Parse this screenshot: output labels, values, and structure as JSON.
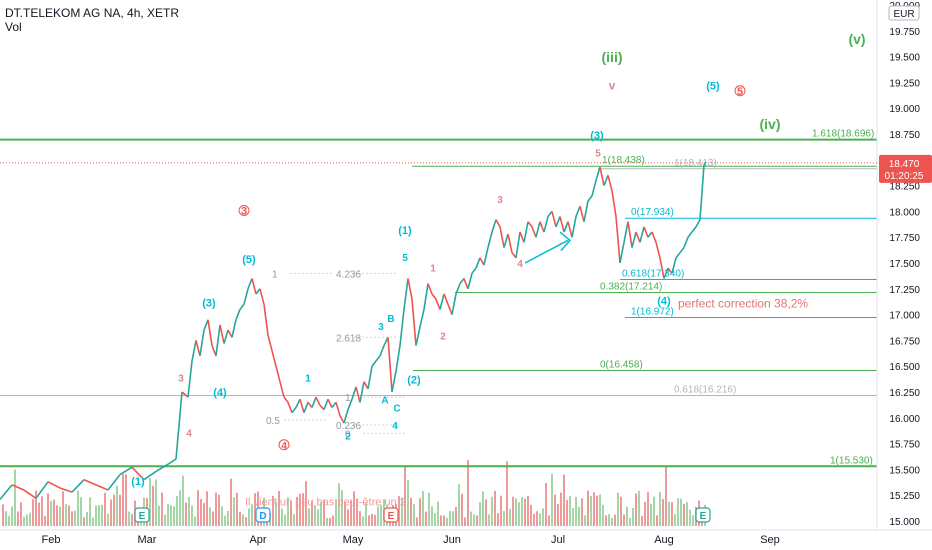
{
  "header": {
    "symbol_line": "DT.TELEKOM AG NA, 4h, XETR",
    "vol_label": "Vol"
  },
  "chart_data": {
    "type": "line",
    "currency": "EUR",
    "price_axis_ticks": [
      "20.000",
      "19.750",
      "19.500",
      "19.250",
      "19.000",
      "18.750",
      "18.500",
      "18.250",
      "18.000",
      "17.750",
      "17.500",
      "17.250",
      "17.000",
      "16.750",
      "16.500",
      "16.250",
      "16.000",
      "15.750",
      "15.500",
      "15.250",
      "15.000"
    ],
    "time_axis_ticks": [
      "Feb",
      "Mar",
      "Apr",
      "May",
      "Jun",
      "Jul",
      "Aug",
      "Sep"
    ],
    "last_price": "18.470",
    "countdown": "01:20:25",
    "series": [
      {
        "values": [
          [
            0,
            15.21
          ],
          [
            12,
            15.35
          ],
          [
            24,
            15.3
          ],
          [
            36,
            15.22
          ],
          [
            48,
            15.38
          ],
          [
            60,
            15.32
          ],
          [
            72,
            15.28
          ],
          [
            84,
            15.4
          ],
          [
            96,
            15.35
          ],
          [
            108,
            15.3
          ],
          [
            120,
            15.45
          ],
          [
            132,
            15.52
          ],
          [
            144,
            15.4
          ],
          [
            156,
            15.48
          ],
          [
            168,
            15.55
          ],
          [
            176,
            15.6
          ],
          [
            182,
            16.25
          ],
          [
            188,
            16.2
          ],
          [
            192,
            16.55
          ],
          [
            196,
            16.75
          ],
          [
            200,
            16.6
          ],
          [
            204,
            16.85
          ],
          [
            208,
            16.95
          ],
          [
            212,
            16.7
          ],
          [
            216,
            16.6
          ],
          [
            220,
            16.9
          ],
          [
            224,
            16.72
          ],
          [
            228,
            16.85
          ],
          [
            232,
            16.78
          ],
          [
            236,
            16.95
          ],
          [
            240,
            17.05
          ],
          [
            244,
            17.1
          ],
          [
            248,
            17.25
          ],
          [
            252,
            17.35
          ],
          [
            256,
            17.2
          ],
          [
            260,
            17.25
          ],
          [
            264,
            17.1
          ],
          [
            268,
            16.8
          ],
          [
            272,
            16.65
          ],
          [
            276,
            16.5
          ],
          [
            280,
            16.35
          ],
          [
            284,
            16.2
          ],
          [
            288,
            16.15
          ],
          [
            292,
            16.05
          ],
          [
            296,
            16.1
          ],
          [
            300,
            16.18
          ],
          [
            304,
            16.05
          ],
          [
            308,
            16.15
          ],
          [
            312,
            16.1
          ],
          [
            316,
            16.2
          ],
          [
            320,
            16.12
          ],
          [
            324,
            16.08
          ],
          [
            328,
            16.18
          ],
          [
            332,
            16.1
          ],
          [
            336,
            16.15
          ],
          [
            340,
            16.02
          ],
          [
            344,
            15.95
          ],
          [
            348,
            16.08
          ],
          [
            352,
            16.18
          ],
          [
            356,
            16.3
          ],
          [
            360,
            16.15
          ],
          [
            364,
            16.35
          ],
          [
            368,
            16.28
          ],
          [
            372,
            16.5
          ],
          [
            376,
            16.55
          ],
          [
            380,
            16.6
          ],
          [
            384,
            16.7
          ],
          [
            388,
            16.78
          ],
          [
            392,
            16.25
          ],
          [
            396,
            16.45
          ],
          [
            400,
            16.7
          ],
          [
            404,
            17.05
          ],
          [
            408,
            17.35
          ],
          [
            412,
            17.15
          ],
          [
            416,
            16.7
          ],
          [
            420,
            16.88
          ],
          [
            424,
            17.05
          ],
          [
            428,
            17.3
          ],
          [
            432,
            17.2
          ],
          [
            436,
            17.15
          ],
          [
            440,
            17.05
          ],
          [
            444,
            17.2
          ],
          [
            448,
            17.1
          ],
          [
            452,
            17.0
          ],
          [
            456,
            17.2
          ],
          [
            460,
            17.3
          ],
          [
            464,
            17.35
          ],
          [
            468,
            17.25
          ],
          [
            472,
            17.4
          ],
          [
            476,
            17.45
          ],
          [
            480,
            17.55
          ],
          [
            484,
            17.48
          ],
          [
            488,
            17.65
          ],
          [
            492,
            17.8
          ],
          [
            496,
            17.92
          ],
          [
            500,
            17.85
          ],
          [
            504,
            17.65
          ],
          [
            508,
            17.78
          ],
          [
            512,
            17.6
          ],
          [
            516,
            17.55
          ],
          [
            520,
            17.8
          ],
          [
            524,
            17.7
          ],
          [
            528,
            17.9
          ],
          [
            532,
            17.85
          ],
          [
            536,
            17.75
          ],
          [
            540,
            17.9
          ],
          [
            544,
            17.8
          ],
          [
            548,
            17.95
          ],
          [
            552,
            18.0
          ],
          [
            556,
            17.85
          ],
          [
            560,
            17.95
          ],
          [
            564,
            17.8
          ],
          [
            568,
            17.9
          ],
          [
            572,
            17.75
          ],
          [
            576,
            17.95
          ],
          [
            580,
            18.05
          ],
          [
            584,
            17.9
          ],
          [
            588,
            18.1
          ],
          [
            592,
            18.15
          ],
          [
            596,
            18.3
          ],
          [
            600,
            18.43
          ],
          [
            604,
            18.25
          ],
          [
            608,
            18.35
          ],
          [
            612,
            18.2
          ],
          [
            616,
            17.95
          ],
          [
            620,
            17.5
          ],
          [
            624,
            17.7
          ],
          [
            628,
            17.9
          ],
          [
            632,
            17.65
          ],
          [
            636,
            17.8
          ],
          [
            640,
            17.7
          ],
          [
            644,
            17.85
          ],
          [
            648,
            17.75
          ],
          [
            652,
            17.8
          ],
          [
            656,
            17.7
          ],
          [
            660,
            17.55
          ],
          [
            664,
            17.35
          ],
          [
            668,
            17.45
          ],
          [
            672,
            17.4
          ],
          [
            676,
            17.55
          ],
          [
            680,
            17.6
          ],
          [
            684,
            17.65
          ],
          [
            688,
            17.75
          ],
          [
            692,
            17.8
          ],
          [
            696,
            17.85
          ],
          [
            700,
            17.92
          ],
          [
            704,
            18.45
          ],
          [
            706,
            18.48
          ]
        ]
      }
    ],
    "levels": [
      {
        "value": 18.696,
        "label": "1.618(18.696)",
        "color": "#4caf50",
        "thick": true
      },
      {
        "value": 18.438,
        "label": "1(18.438)",
        "color": "#4caf50",
        "thick": false
      },
      {
        "value": 18.413,
        "label": "1(18.413)",
        "color": "#b2b5be",
        "thick": false
      },
      {
        "value": 17.934,
        "label": "0(17.934)",
        "color": "#00bcd4",
        "thick": false
      },
      {
        "value": 17.34,
        "label": "0.618(17.340)",
        "color": "#00bcd4",
        "thick": false
      },
      {
        "value": 17.214,
        "label": "0.382(17.214)",
        "color": "#4caf50",
        "thick": false
      },
      {
        "value": 16.972,
        "label": "1(16.972)",
        "color": "#00bcd4",
        "thick": false
      },
      {
        "value": 16.458,
        "label": "0(16.458)",
        "color": "#4caf50",
        "thick": false
      },
      {
        "value": 16.216,
        "label": "0.618(16.216)",
        "color": "#b2b5be",
        "thick": false
      },
      {
        "value": 15.53,
        "label": "1(15.530)",
        "color": "#4caf50",
        "thick": true
      }
    ],
    "gray_fib_labels": [
      {
        "label": "1",
        "x": 272,
        "y": 17.4
      },
      {
        "label": "4.236",
        "x": 336,
        "y": 17.4
      },
      {
        "label": "2.618",
        "x": 336,
        "y": 16.78
      },
      {
        "label": "1",
        "x": 345,
        "y": 16.2
      },
      {
        "label": "0.5",
        "x": 266,
        "y": 15.98
      },
      {
        "label": "0.236",
        "x": 336,
        "y": 15.93
      },
      {
        "label": "0",
        "x": 345,
        "y": 15.85
      }
    ],
    "wave_labels": [
      {
        "text": "(iii)",
        "color": "#4caf50",
        "x": 612,
        "y": 19.45,
        "size": 14
      },
      {
        "text": "(v)",
        "color": "#4caf50",
        "x": 857,
        "y": 19.62,
        "size": 14
      },
      {
        "text": "(iv)",
        "color": "#4caf50",
        "x": 770,
        "y": 18.8,
        "size": 14
      },
      {
        "text": "v",
        "color": "#e0868b",
        "x": 612,
        "y": 19.18,
        "size": 12
      },
      {
        "text": "(5)",
        "color": "#00bcd4",
        "x": 713,
        "y": 19.18,
        "size": 11
      },
      {
        "text": "5",
        "color": "#ef5350",
        "x": 740,
        "y": 19.13,
        "size": 11,
        "circle": true
      },
      {
        "text": "(3)",
        "color": "#00bcd4",
        "x": 597,
        "y": 18.7,
        "size": 11
      },
      {
        "text": "5",
        "color": "#e0868b",
        "x": 598,
        "y": 18.53,
        "size": 10
      },
      {
        "text": "3",
        "color": "#e0868b",
        "x": 500,
        "y": 18.08,
        "size": 10
      },
      {
        "text": "4",
        "color": "#e0868b",
        "x": 520,
        "y": 17.46,
        "size": 10
      },
      {
        "text": "1",
        "color": "#e0868b",
        "x": 433,
        "y": 17.42,
        "size": 10
      },
      {
        "text": "2",
        "color": "#e0868b",
        "x": 443,
        "y": 16.76,
        "size": 10
      },
      {
        "text": "3",
        "color": "#ef5350",
        "x": 244,
        "y": 17.97,
        "size": 11,
        "circle": true
      },
      {
        "text": "(1)",
        "color": "#00bcd4",
        "x": 405,
        "y": 17.78,
        "size": 11
      },
      {
        "text": "5",
        "color": "#00bcd4",
        "x": 405,
        "y": 17.52,
        "size": 10
      },
      {
        "text": "(5)",
        "color": "#00bcd4",
        "x": 249,
        "y": 17.5,
        "size": 11
      },
      {
        "text": "(3)",
        "color": "#00bcd4",
        "x": 209,
        "y": 17.08,
        "size": 11
      },
      {
        "text": "3",
        "color": "#e0868b",
        "x": 181,
        "y": 16.35,
        "size": 10
      },
      {
        "text": "4",
        "color": "#e0868b",
        "x": 189,
        "y": 15.82,
        "size": 10
      },
      {
        "text": "(4)",
        "color": "#00bcd4",
        "x": 220,
        "y": 16.21,
        "size": 11
      },
      {
        "text": "1",
        "color": "#00bcd4",
        "x": 308,
        "y": 16.35,
        "size": 10
      },
      {
        "text": "3",
        "color": "#00bcd4",
        "x": 381,
        "y": 16.85,
        "size": 10
      },
      {
        "text": "B",
        "color": "#00bcd4",
        "x": 391,
        "y": 16.93,
        "size": 10
      },
      {
        "text": "(2)",
        "color": "#00bcd4",
        "x": 414,
        "y": 16.33,
        "size": 11
      },
      {
        "text": "A",
        "color": "#00bcd4",
        "x": 385,
        "y": 16.14,
        "size": 10
      },
      {
        "text": "C",
        "color": "#00bcd4",
        "x": 397,
        "y": 16.06,
        "size": 10
      },
      {
        "text": "2",
        "color": "#00bcd4",
        "x": 348,
        "y": 15.79,
        "size": 10
      },
      {
        "text": "4",
        "color": "#00bcd4",
        "x": 395,
        "y": 15.89,
        "size": 10
      },
      {
        "text": "4",
        "color": "#ef5350",
        "x": 284,
        "y": 15.7,
        "size": 10,
        "circle": true
      },
      {
        "text": "(1)",
        "color": "#00bcd4",
        "x": 138,
        "y": 15.35,
        "size": 11
      },
      {
        "text": "(4)",
        "color": "#00bcd4",
        "x": 664,
        "y": 17.1,
        "size": 11
      }
    ],
    "annotations": [
      {
        "text": "perfect correction 38,2%",
        "color": "#e57373",
        "x": 678,
        "y": 17.07,
        "size": 12
      },
      {
        "text": "Il vient un peu bas peut-être un 2",
        "color": "#ef9a9a",
        "x": 245,
        "y": 15.15,
        "size": 11
      }
    ],
    "event_markers": [
      {
        "text": "E",
        "x": 142,
        "color": "#26a69a"
      },
      {
        "text": "D",
        "x": 263,
        "color": "#2196f3"
      },
      {
        "text": "E",
        "x": 391,
        "color": "#ef5350"
      },
      {
        "text": "E",
        "x": 703,
        "color": "#26a69a"
      }
    ],
    "title": "",
    "xlabel": "",
    "ylabel": ""
  }
}
